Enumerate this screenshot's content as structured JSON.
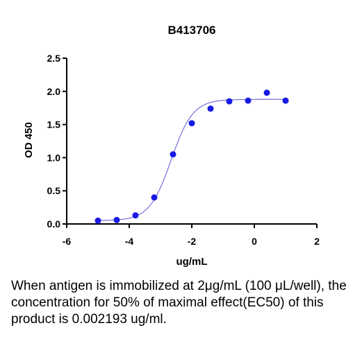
{
  "chart_data": {
    "type": "scatter",
    "title": "B413706",
    "xlabel": "ug/mL",
    "ylabel": "OD 450",
    "xlim": [
      -6,
      2
    ],
    "ylim": [
      0,
      2.5
    ],
    "xticks": [
      -6,
      -4,
      -2,
      0,
      2
    ],
    "xtick_labels": [
      "-6",
      "-4",
      "-2",
      "0",
      "2"
    ],
    "yticks": [
      0,
      0.5,
      1.0,
      1.5,
      2.0,
      2.5
    ],
    "ytick_labels": [
      "0.0",
      "0.5",
      "1.0",
      "1.5",
      "2.0",
      "2.5"
    ],
    "grid": false,
    "point_color": "#1a1ae6",
    "curve_color": "#7a7adf",
    "points": [
      {
        "x": -5.0,
        "y": 0.05
      },
      {
        "x": -4.4,
        "y": 0.06
      },
      {
        "x": -3.8,
        "y": 0.13
      },
      {
        "x": -3.2,
        "y": 0.4
      },
      {
        "x": -2.6,
        "y": 1.05
      },
      {
        "x": -2.0,
        "y": 1.52
      },
      {
        "x": -1.4,
        "y": 1.74
      },
      {
        "x": -0.8,
        "y": 1.85
      },
      {
        "x": -0.2,
        "y": 1.86
      },
      {
        "x": 0.4,
        "y": 1.98
      },
      {
        "x": 1.0,
        "y": 1.86
      }
    ],
    "fit_curve": {
      "model": "4PL",
      "bottom": 0.05,
      "top": 1.88,
      "log_ec50": -2.66,
      "hill": 1.25,
      "x_range": [
        -5.0,
        1.0
      ]
    }
  },
  "caption": "When antigen is immobilized at 2μg/mL (100 μL/well), the concentration for 50% of maximal effect(EC50) of this product is 0.002193 ug/ml."
}
